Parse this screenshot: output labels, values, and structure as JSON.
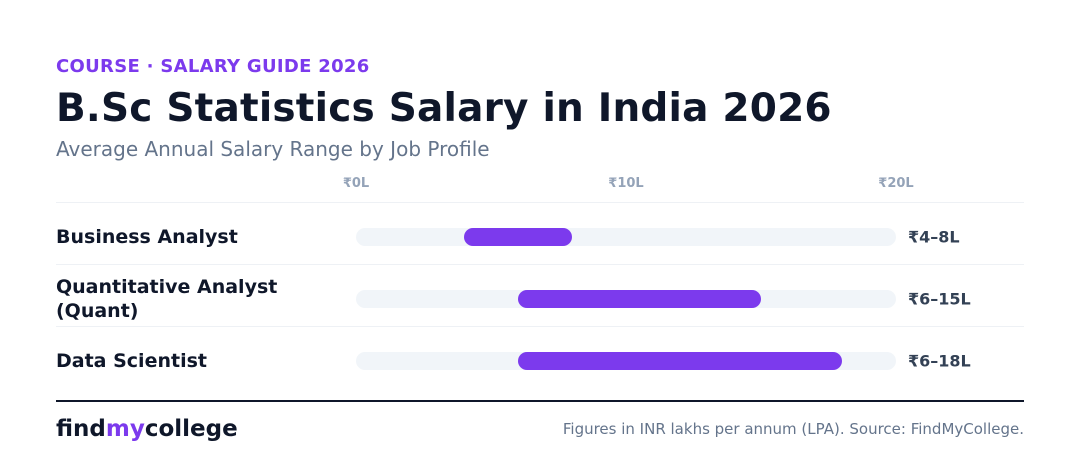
{
  "header": {
    "eyebrow": "COURSE · SALARY GUIDE 2026",
    "title": "B.Sc Statistics Salary in India 2026",
    "subtitle": "Average Annual Salary Range by Job Profile"
  },
  "chart_data": {
    "type": "bar",
    "orientation": "horizontal-range",
    "xlim": [
      0,
      20
    ],
    "ticks": [
      {
        "value": 0,
        "label": "₹0L"
      },
      {
        "value": 10,
        "label": "₹10L"
      },
      {
        "value": 20,
        "label": "₹20L"
      }
    ],
    "categories": [
      "Business Analyst",
      "Quantitative Analyst (Quant)",
      "Data Scientist"
    ],
    "ranges": [
      {
        "min": 4,
        "max": 8,
        "label": "₹4–8L"
      },
      {
        "min": 6,
        "max": 15,
        "label": "₹6–15L"
      },
      {
        "min": 6,
        "max": 18,
        "label": "₹6–18L"
      }
    ],
    "grid": false,
    "colors": {
      "bar": "#7c3aed",
      "track": "#f1f5f9"
    }
  },
  "footer": {
    "brand_part1": "find",
    "brand_part2": "my",
    "brand_part3": "college",
    "note": "Figures in INR lakhs per annum (LPA). Source: FindMyCollege."
  },
  "colors": {
    "accent": "#7c3aed",
    "heading": "#0f172a",
    "muted": "#64748b"
  }
}
